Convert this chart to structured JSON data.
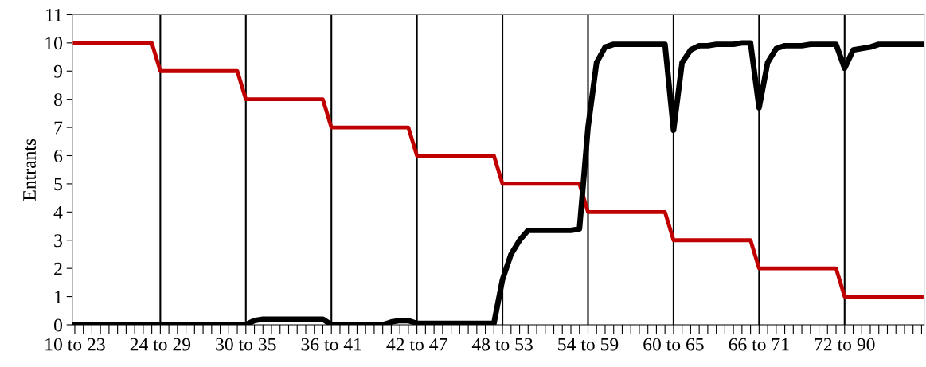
{
  "chart_data": {
    "type": "line",
    "ylabel": "Entrants",
    "categories": [
      "10 to 23",
      null,
      null,
      null,
      null,
      null,
      null,
      null,
      null,
      null,
      "24 to 29",
      null,
      null,
      null,
      null,
      null,
      null,
      null,
      null,
      null,
      "30 to 35",
      null,
      null,
      null,
      null,
      null,
      null,
      null,
      null,
      null,
      "36 to 41",
      null,
      null,
      null,
      null,
      null,
      null,
      null,
      null,
      null,
      "42 to 47",
      null,
      null,
      null,
      null,
      null,
      null,
      null,
      null,
      null,
      "48 to 53",
      null,
      null,
      null,
      null,
      null,
      null,
      null,
      null,
      null,
      "54 to 59",
      null,
      null,
      null,
      null,
      null,
      null,
      null,
      null,
      null,
      "60 to 65",
      null,
      null,
      null,
      null,
      null,
      null,
      null,
      null,
      null,
      "66 to 71",
      null,
      null,
      null,
      null,
      null,
      null,
      null,
      null,
      null,
      "72 to 90",
      null,
      null,
      null,
      null,
      null,
      null,
      null,
      null,
      null
    ],
    "series": [
      {
        "color": "#c00000",
        "values": [
          10,
          10,
          10,
          10,
          10,
          10,
          10,
          10,
          10,
          10,
          9,
          9,
          9,
          9,
          9,
          9,
          9,
          9,
          9,
          9,
          8,
          8,
          8,
          8,
          8,
          8,
          8,
          8,
          8,
          8,
          7,
          7,
          7,
          7,
          7,
          7,
          7,
          7,
          7,
          7,
          6,
          6,
          6,
          6,
          6,
          6,
          6,
          6,
          6,
          6,
          5,
          5,
          5,
          5,
          5,
          5,
          5,
          5,
          5,
          5,
          4,
          4,
          4,
          4,
          4,
          4,
          4,
          4,
          4,
          4,
          3,
          3,
          3,
          3,
          3,
          3,
          3,
          3,
          3,
          3,
          2,
          2,
          2,
          2,
          2,
          2,
          2,
          2,
          2,
          2,
          1,
          1,
          1,
          1,
          1,
          1,
          1,
          1,
          1,
          1
        ]
      },
      {
        "color": "#000000",
        "values": [
          0,
          0,
          0,
          0,
          0,
          0,
          0,
          0,
          0,
          0,
          0,
          0,
          0,
          0,
          0,
          0,
          0,
          0,
          0,
          0,
          0,
          0.15,
          0.2,
          0.2,
          0.2,
          0.2,
          0.2,
          0.2,
          0.2,
          0.2,
          0,
          0,
          0,
          0,
          0,
          0,
          0,
          0.1,
          0.15,
          0.15,
          0.05,
          0.05,
          0.05,
          0.05,
          0.05,
          0.05,
          0.05,
          0.05,
          0.05,
          0.05,
          1.6,
          2.5,
          3.0,
          3.35,
          3.35,
          3.35,
          3.35,
          3.35,
          3.35,
          3.4,
          7.0,
          9.3,
          9.85,
          9.95,
          9.95,
          9.95,
          9.95,
          9.95,
          9.95,
          9.95,
          6.9,
          9.3,
          9.75,
          9.9,
          9.9,
          9.95,
          9.95,
          9.95,
          10,
          10,
          7.7,
          9.3,
          9.8,
          9.9,
          9.9,
          9.9,
          9.95,
          9.95,
          9.95,
          9.95,
          9.1,
          9.75,
          9.8,
          9.85,
          9.95,
          9.95,
          9.95,
          9.95,
          9.95,
          9.95
        ]
      }
    ],
    "ref_lines": [
      {
        "axis": "x",
        "value": "24 to 29",
        "color": "#000000"
      },
      {
        "axis": "x",
        "value": "30 to 35",
        "color": "#000000"
      },
      {
        "axis": "x",
        "value": "36 to 41",
        "color": "#000000"
      },
      {
        "axis": "x",
        "value": "42 to 47",
        "color": "#000000"
      },
      {
        "axis": "x",
        "value": "48 to 53",
        "color": "#000000"
      },
      {
        "axis": "x",
        "value": "54 to 59",
        "color": "#000000"
      },
      {
        "axis": "x",
        "value": "60 to 65",
        "color": "#000000"
      },
      {
        "axis": "x",
        "value": "66 to 71",
        "color": "#000000"
      },
      {
        "axis": "x",
        "value": "72 to 90",
        "color": "#000000"
      }
    ],
    "ylim": [
      0,
      11
    ],
    "yticks": [
      0,
      1,
      2,
      3,
      4,
      5,
      6,
      7,
      8,
      9,
      10,
      11
    ],
    "grid": false,
    "legend": false,
    "marker": "none",
    "line_style": "solid"
  }
}
